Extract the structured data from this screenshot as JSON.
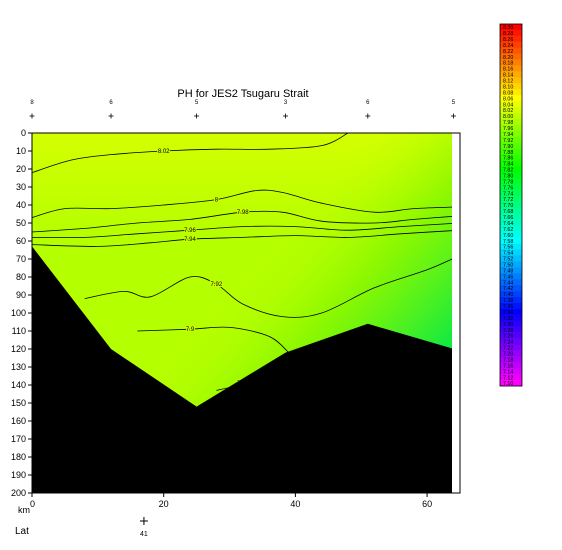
{
  "chart_data": {
    "type": "contour",
    "title": "PH for JES2 Tsugaru Strait",
    "xlabel": "km",
    "bottom_label": "Lat",
    "lat_marker": {
      "x": 17,
      "label": "41"
    },
    "xlim": [
      0,
      65
    ],
    "ylim": [
      0,
      200
    ],
    "y_reversed": true,
    "x_ticks": [
      0,
      20,
      40,
      60
    ],
    "y_ticks": [
      0,
      10,
      20,
      30,
      40,
      50,
      60,
      70,
      80,
      90,
      100,
      110,
      120,
      130,
      140,
      150,
      160,
      170,
      180,
      190,
      200
    ],
    "stations": [
      {
        "label": "8",
        "x": 0
      },
      {
        "label": "6",
        "x": 12
      },
      {
        "label": "5",
        "x": 25
      },
      {
        "label": "3",
        "x": 38.5
      },
      {
        "label": "6",
        "x": 51
      },
      {
        "label": "5",
        "x": 64
      }
    ],
    "bottom_profile": [
      [
        0,
        63
      ],
      [
        12,
        120
      ],
      [
        25,
        152
      ],
      [
        38.5,
        122
      ],
      [
        51,
        106
      ],
      [
        65,
        121
      ]
    ],
    "contours": [
      {
        "level": "8.02",
        "points": [
          [
            0,
            22
          ],
          [
            6,
            15
          ],
          [
            12,
            12
          ],
          [
            20,
            10
          ],
          [
            28,
            9
          ],
          [
            36,
            9
          ],
          [
            44,
            7
          ],
          [
            48,
            0
          ]
        ]
      },
      {
        "level": "8",
        "points": [
          [
            0,
            47
          ],
          [
            5,
            42
          ],
          [
            12,
            42
          ],
          [
            20,
            40
          ],
          [
            28,
            37
          ],
          [
            34,
            32
          ],
          [
            38,
            33
          ],
          [
            44,
            39
          ],
          [
            52,
            44
          ],
          [
            58,
            42
          ],
          [
            65,
            41
          ]
        ]
      },
      {
        "level": "7.98",
        "points": [
          [
            0,
            55
          ],
          [
            8,
            53
          ],
          [
            16,
            50
          ],
          [
            24,
            48
          ],
          [
            32,
            44
          ],
          [
            38,
            44
          ],
          [
            44,
            49
          ],
          [
            52,
            50
          ],
          [
            58,
            48
          ],
          [
            65,
            46
          ]
        ]
      },
      {
        "level": "7.96",
        "points": [
          [
            0,
            58
          ],
          [
            8,
            58
          ],
          [
            16,
            56
          ],
          [
            24,
            54
          ],
          [
            32,
            52
          ],
          [
            40,
            52
          ],
          [
            48,
            54
          ],
          [
            56,
            52
          ],
          [
            65,
            50
          ]
        ]
      },
      {
        "level": "7.94",
        "points": [
          [
            0,
            62
          ],
          [
            10,
            63
          ],
          [
            18,
            61
          ],
          [
            24,
            59
          ],
          [
            32,
            58
          ],
          [
            40,
            57
          ],
          [
            48,
            58
          ],
          [
            56,
            56
          ],
          [
            65,
            54
          ]
        ]
      },
      {
        "level": "7.92",
        "points": [
          [
            8,
            92
          ],
          [
            14,
            88
          ],
          [
            18,
            91
          ],
          [
            24,
            80
          ],
          [
            28,
            84
          ],
          [
            32,
            95
          ],
          [
            38,
            102
          ],
          [
            44,
            100
          ],
          [
            52,
            86
          ],
          [
            60,
            76
          ],
          [
            65,
            68
          ]
        ]
      },
      {
        "level": "7.9",
        "points": [
          [
            16,
            110
          ],
          [
            24,
            109
          ],
          [
            30,
            108
          ],
          [
            36,
            113
          ],
          [
            39,
            122
          ]
        ]
      },
      {
        "level": "7.88",
        "points": [
          [
            28,
            143
          ],
          [
            32,
            139
          ],
          [
            35,
            130
          ]
        ]
      }
    ],
    "colorbar": {
      "min": 7.1,
      "max": 8.3,
      "step": 0.02,
      "labels": [
        "8.30",
        "8.28",
        "8.26",
        "8.24",
        "8.22",
        "8.20",
        "8.18",
        "8.16",
        "8.14",
        "8.12",
        "8.10",
        "8.08",
        "8.06",
        "8.04",
        "8.02",
        "8.00",
        "7.98",
        "7.96",
        "7.94",
        "7.92",
        "7.90",
        "7.88",
        "7.86",
        "7.84",
        "7.82",
        "7.80",
        "7.78",
        "7.76",
        "7.74",
        "7.72",
        "7.70",
        "7.68",
        "7.66",
        "7.64",
        "7.62",
        "7.60",
        "7.58",
        "7.56",
        "7.54",
        "7.52",
        "7.50",
        "7.48",
        "7.46",
        "7.44",
        "7.42",
        "7.40",
        "7.38",
        "7.36",
        "7.34",
        "7.32",
        "7.30",
        "7.28",
        "7.26",
        "7.24",
        "7.22",
        "7.20",
        "7.18",
        "7.16",
        "7.14",
        "7.12",
        "7.10"
      ]
    },
    "colors": {
      "background_field": "#c8ff00",
      "deep_field": "#00f03c",
      "land": "#000000"
    }
  }
}
